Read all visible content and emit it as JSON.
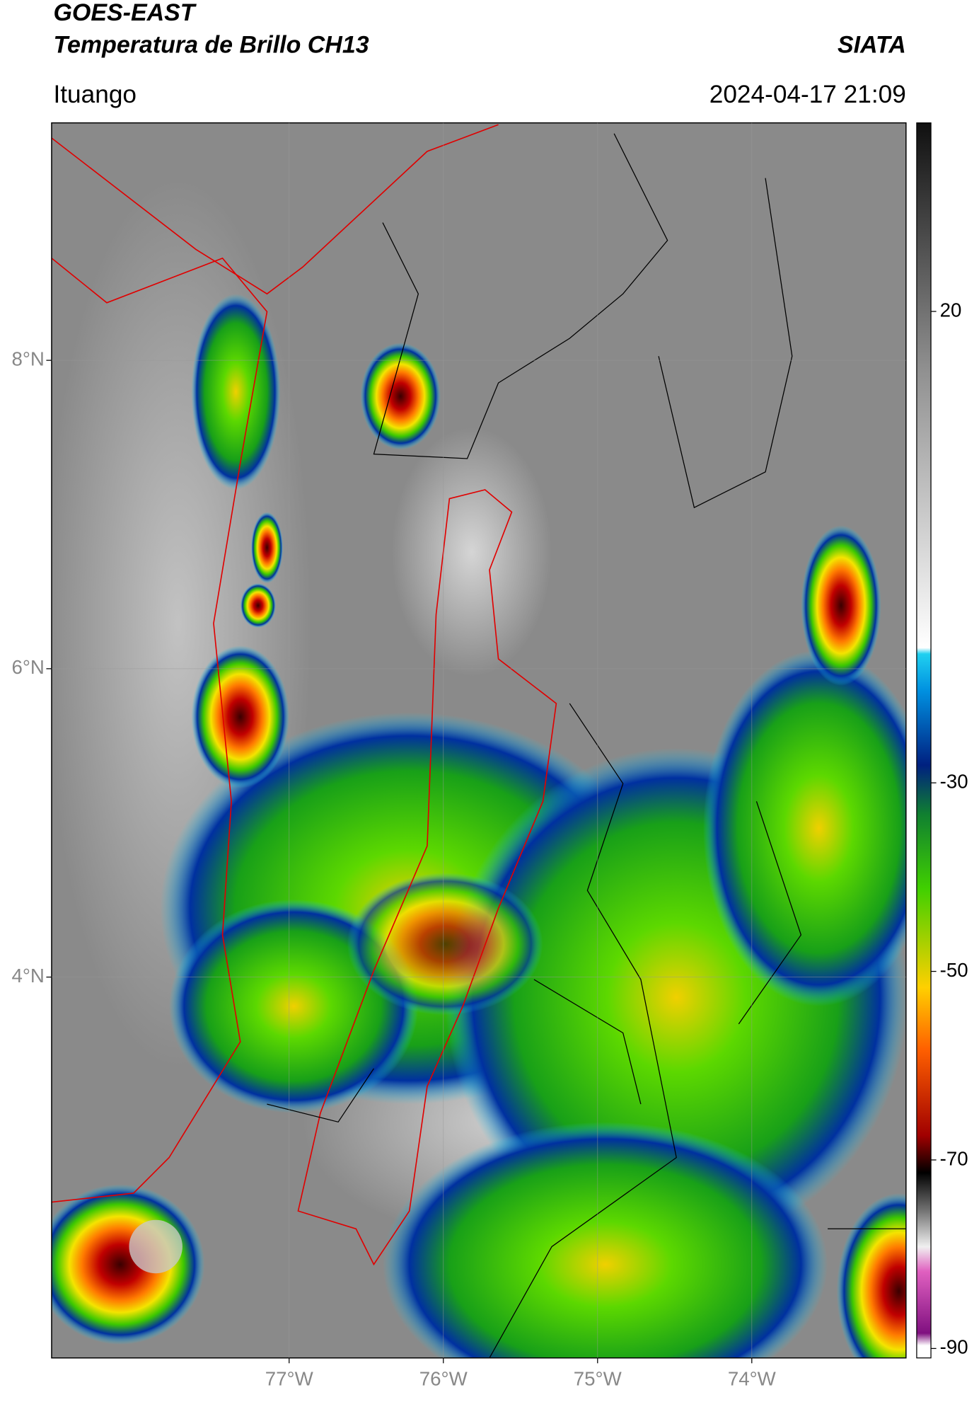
{
  "header": {
    "title": "GOES-EAST",
    "subtitle": "Temperatura de Brillo CH13",
    "source": "SIATA",
    "location": "Ituango",
    "datetime": "2024-04-17 21:09"
  },
  "map": {
    "lonlim": [
      -78.54,
      -73.0
    ],
    "latlim": [
      1.53,
      9.54
    ],
    "lon_ticks": [
      {
        "value": -77,
        "label": "77°W"
      },
      {
        "value": -76,
        "label": "76°W"
      },
      {
        "value": -75,
        "label": "75°W"
      },
      {
        "value": -74,
        "label": "74°W"
      }
    ],
    "lat_ticks": [
      {
        "value": 8,
        "label": "8°N"
      },
      {
        "value": 6,
        "label": "6°N"
      },
      {
        "value": 4,
        "label": "4°N"
      }
    ]
  },
  "colorbar": {
    "range": [
      -91,
      40
    ],
    "ticks": [
      20,
      -30,
      -50,
      -70,
      -90
    ]
  }
}
